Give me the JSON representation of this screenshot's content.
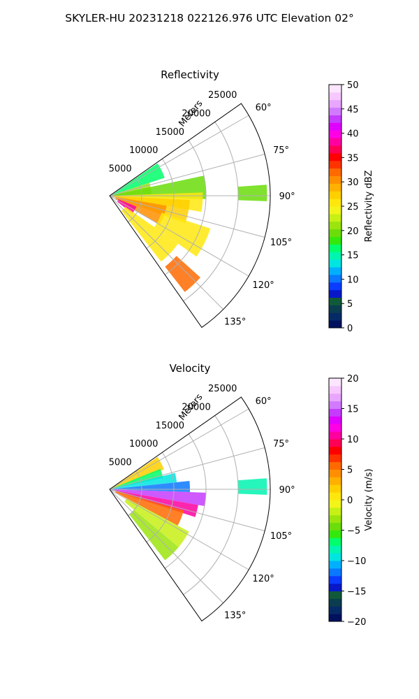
{
  "suptitle": "SKYLER-HU  20231218  022126.976 UTC Elevation 02°",
  "chart_data": [
    {
      "type": "heatmap",
      "projection": "polar",
      "title": "Reflectivity",
      "r_label": "Meters",
      "r_ticks": [
        5000,
        10000,
        15000,
        20000,
        25000
      ],
      "r_tick_labels": [
        "5000",
        "10000",
        "15000",
        "20000",
        "25000"
      ],
      "r_lim": [
        0,
        25000
      ],
      "theta_range_deg": [
        55,
        145
      ],
      "theta_ticks_deg": [
        60,
        75,
        90,
        105,
        120,
        135
      ],
      "theta_tick_labels": [
        "60°",
        "75°",
        "90°",
        "105°",
        "120°",
        "135°"
      ],
      "grid": true,
      "colorbar": {
        "label": "Reflectivity dBZ",
        "range": [
          0,
          50
        ],
        "ticks": [
          0,
          5,
          10,
          15,
          20,
          25,
          30,
          35,
          40,
          45,
          50
        ],
        "tick_labels": [
          "0",
          "5",
          "10",
          "15",
          "20",
          "25",
          "30",
          "35",
          "40",
          "45",
          "50"
        ],
        "colors": [
          "#00115e",
          "#062a66",
          "#0a3d4f",
          "#105a3a",
          "#0818c9",
          "#0a3cff",
          "#0a78ff",
          "#00b0ff",
          "#00e5e0",
          "#00f5b0",
          "#00ff6a",
          "#35e80c",
          "#6add0a",
          "#9be40e",
          "#c7f015",
          "#f2f41a",
          "#ffe70e",
          "#ffcf00",
          "#ffb000",
          "#ff8f00",
          "#ff6a00",
          "#ff3300",
          "#ff0000",
          "#ff0055",
          "#ff00a0",
          "#ff00e4",
          "#e000ff",
          "#c53cff",
          "#d27aff",
          "#e8a6ff",
          "#f6c8ff",
          "#fce6ff"
        ]
      },
      "features": [
        {
          "theta": [
            56,
            72
          ],
          "r": [
            0,
            9000
          ],
          "value": 17
        },
        {
          "theta": [
            72,
            88
          ],
          "r": [
            0,
            6500
          ],
          "value": 21
        },
        {
          "theta": [
            78,
            92
          ],
          "r": [
            0,
            15000
          ],
          "value": 20
        },
        {
          "theta": [
            88,
            100
          ],
          "r": [
            0,
            14500
          ],
          "value": 25
        },
        {
          "theta": [
            93,
            110
          ],
          "r": [
            0,
            12500
          ],
          "value": 27
        },
        {
          "theta": [
            100,
            120
          ],
          "r": [
            1000,
            9000
          ],
          "value": 30
        },
        {
          "theta": [
            108,
            125
          ],
          "r": [
            8500,
            16500
          ],
          "value": 25
        },
        {
          "theta": [
            112,
            128
          ],
          "r": [
            1500,
            4500
          ],
          "value": 38
        },
        {
          "theta": [
            125,
            142
          ],
          "r": [
            3000,
            13000
          ],
          "value": 26
        },
        {
          "theta": [
            132,
            142
          ],
          "r": [
            14000,
            19000
          ],
          "value": 32
        },
        {
          "theta": [
            86,
            92
          ],
          "r": [
            20000,
            24500
          ],
          "value": 19
        }
      ]
    },
    {
      "type": "heatmap",
      "projection": "polar",
      "title": "Velocity",
      "r_label": "Meters",
      "r_ticks": [
        5000,
        10000,
        15000,
        20000,
        25000
      ],
      "r_tick_labels": [
        "5000",
        "10000",
        "15000",
        "20000",
        "25000"
      ],
      "r_lim": [
        0,
        25000
      ],
      "theta_range_deg": [
        55,
        145
      ],
      "theta_ticks_deg": [
        60,
        75,
        90,
        105,
        120,
        135
      ],
      "theta_tick_labels": [
        "60°",
        "75°",
        "90°",
        "105°",
        "120°",
        "135°"
      ],
      "grid": true,
      "colorbar": {
        "label": "Velocity (m/s)",
        "range": [
          -20,
          20
        ],
        "ticks": [
          -20,
          -15,
          -10,
          -5,
          0,
          5,
          10,
          15,
          20
        ],
        "tick_labels": [
          "−20",
          "−15",
          "−10",
          "−5",
          "0",
          "5",
          "10",
          "15",
          "20"
        ],
        "colors": [
          "#00115e",
          "#062a66",
          "#0a3d4f",
          "#105a3a",
          "#0818c9",
          "#0a3cff",
          "#0a78ff",
          "#00b0ff",
          "#00e5e0",
          "#00f5b0",
          "#00ff6a",
          "#35e80c",
          "#6add0a",
          "#9be40e",
          "#c7f015",
          "#f2f41a",
          "#ffe70e",
          "#ffcf00",
          "#ffb000",
          "#ff8f00",
          "#ff6a00",
          "#ff3300",
          "#ff0000",
          "#ff0055",
          "#ff00a0",
          "#ff00e4",
          "#e000ff",
          "#c53cff",
          "#d27aff",
          "#e8a6ff",
          "#f6c8ff",
          "#fce6ff"
        ]
      },
      "features": [
        {
          "theta": [
            56,
            70
          ],
          "r": [
            0,
            9000
          ],
          "value": 2
        },
        {
          "theta": [
            68,
            78
          ],
          "r": [
            0,
            8500
          ],
          "value": -7
        },
        {
          "theta": [
            76,
            84
          ],
          "r": [
            0,
            10500
          ],
          "value": -9
        },
        {
          "theta": [
            84,
            92
          ],
          "r": [
            0,
            12500
          ],
          "value": -12
        },
        {
          "theta": [
            92,
            100
          ],
          "r": [
            0,
            15000
          ],
          "value": 14
        },
        {
          "theta": [
            100,
            108
          ],
          "r": [
            0,
            14000
          ],
          "value": 11
        },
        {
          "theta": [
            106,
            118
          ],
          "r": [
            1000,
            12000
          ],
          "value": 5
        },
        {
          "theta": [
            118,
            130
          ],
          "r": [
            3000,
            14000
          ],
          "value": -2
        },
        {
          "theta": [
            130,
            142
          ],
          "r": [
            5000,
            14000
          ],
          "value": -3
        },
        {
          "theta": [
            86,
            92
          ],
          "r": [
            20000,
            24500
          ],
          "value": -8
        }
      ]
    }
  ]
}
